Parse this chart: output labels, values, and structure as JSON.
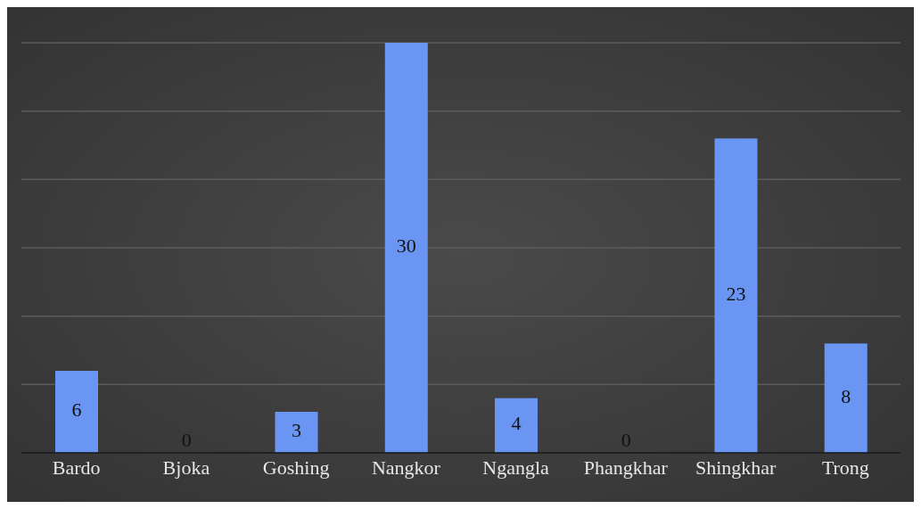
{
  "chart_data": {
    "type": "bar",
    "categories": [
      "Bardo",
      "Bjoka",
      "Goshing",
      "Nangkor",
      "Ngangla",
      "Phangkhar",
      "Shingkhar",
      "Trong"
    ],
    "values": [
      6,
      0,
      3,
      30,
      4,
      0,
      23,
      8
    ],
    "color": "#6b95f2",
    "ylim": [
      0,
      30
    ],
    "yticks": [
      {
        "value": 0,
        "label": null
      },
      {
        "value": 5,
        "label": null
      },
      {
        "value": 10,
        "label": null
      },
      {
        "value": 15,
        "label": null
      },
      {
        "value": 20,
        "label": null
      },
      {
        "value": 25,
        "label": null
      },
      {
        "value": 30,
        "label": null
      }
    ],
    "grid": "y",
    "tick_labels": "x",
    "data_labels": true
  }
}
